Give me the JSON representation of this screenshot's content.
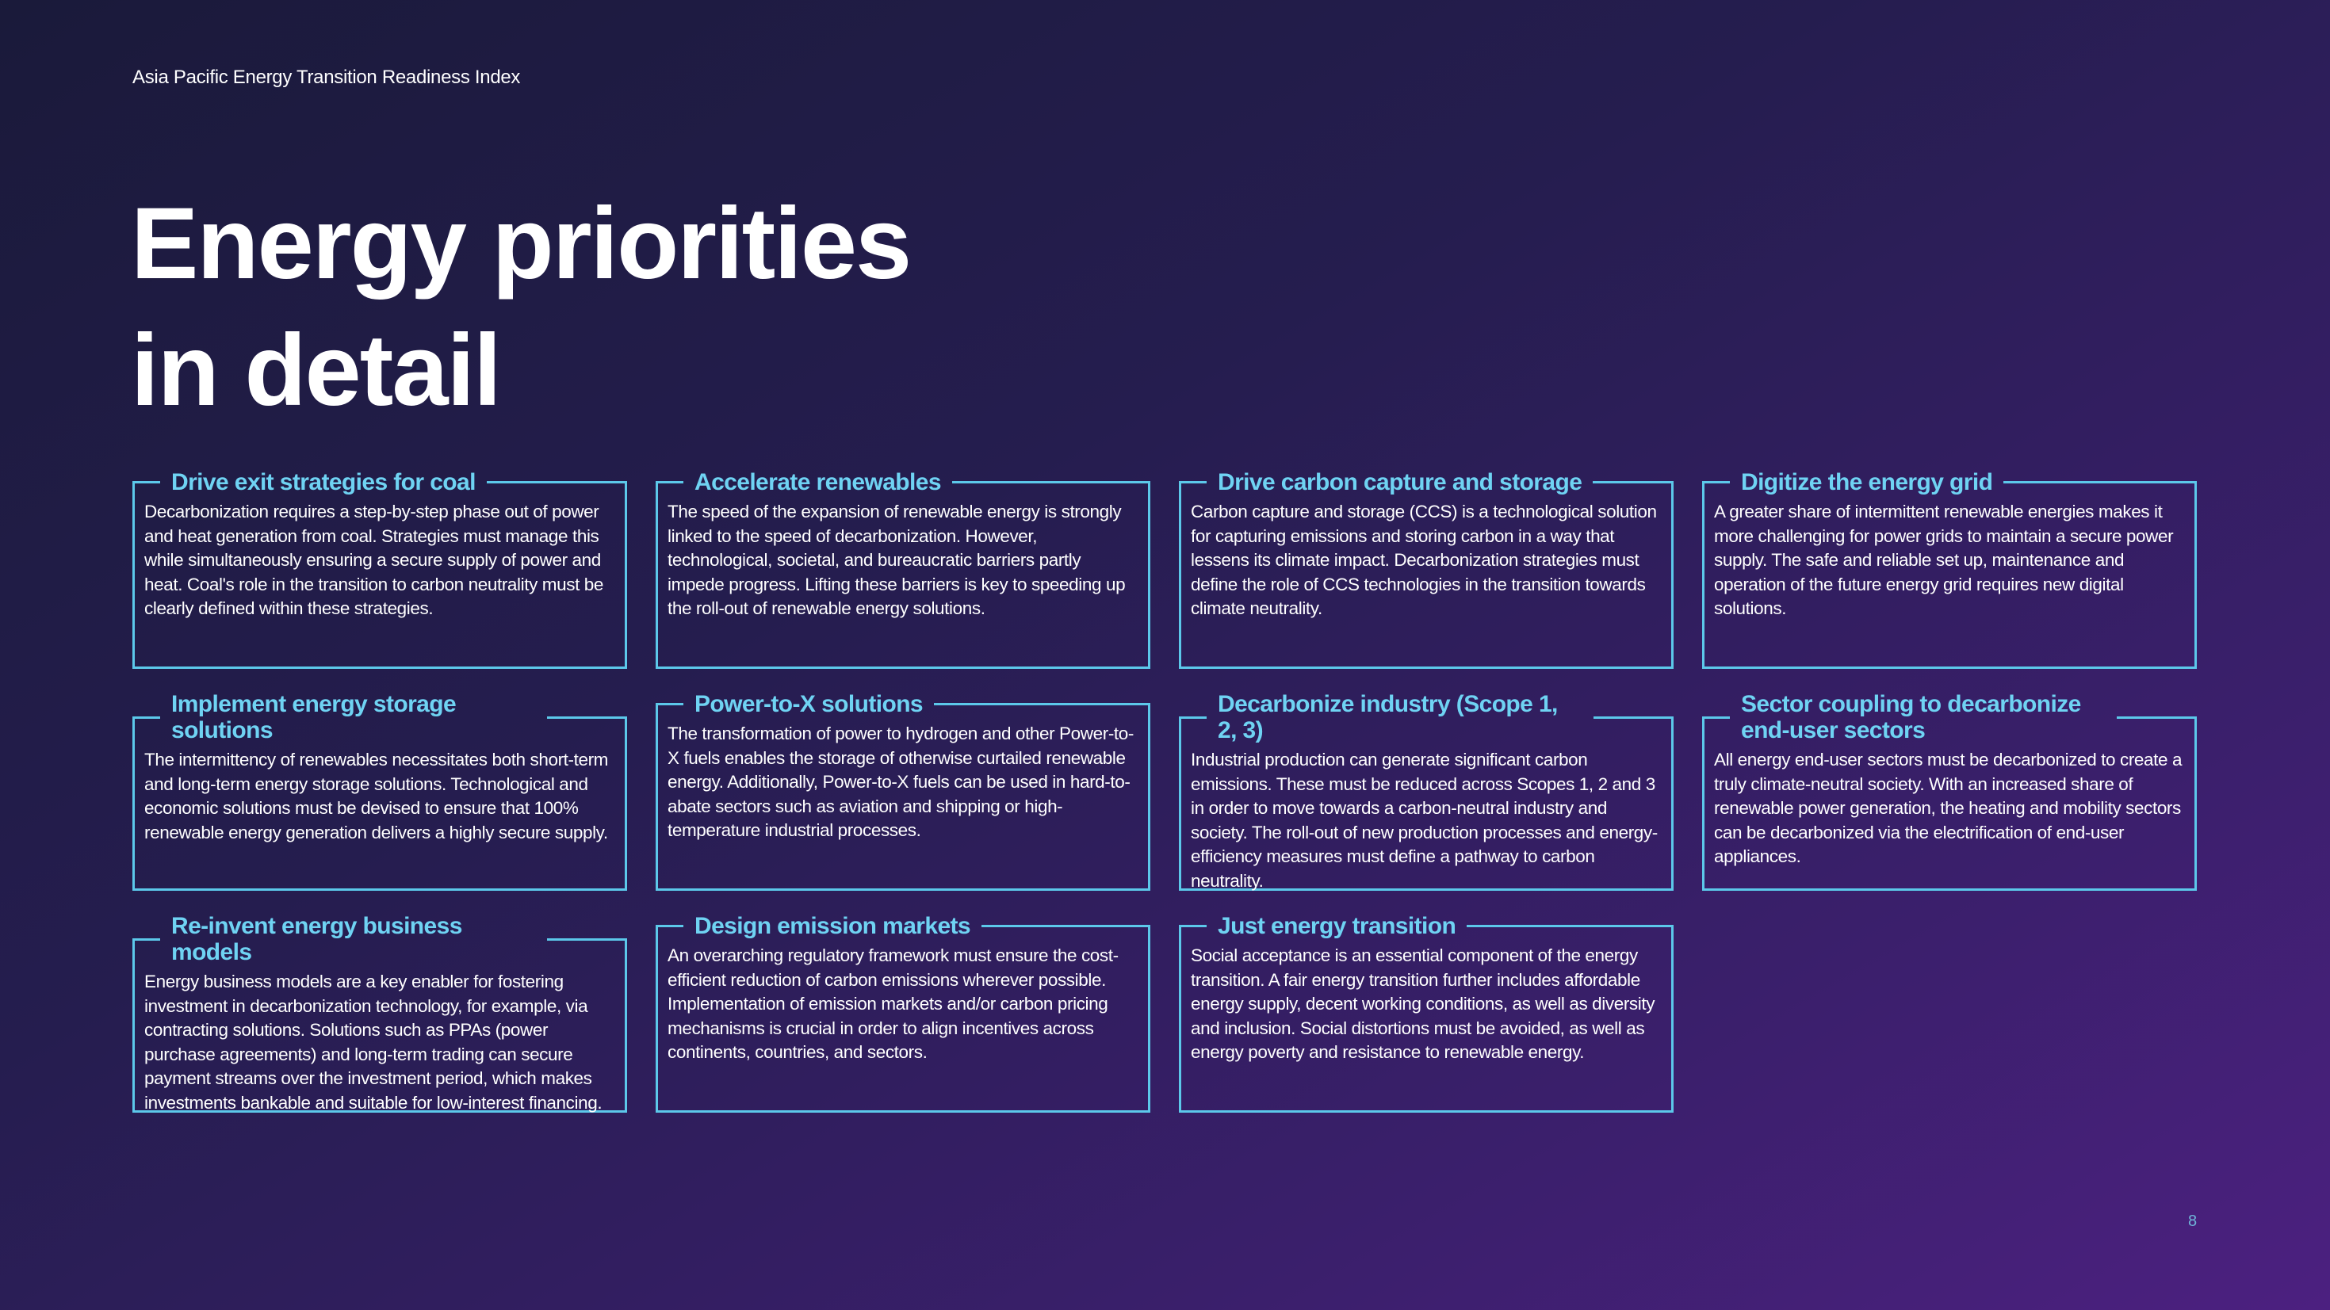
{
  "header": {
    "text": "Asia Pacific Energy Transition Readiness Index"
  },
  "title": {
    "line1": "Energy priorities",
    "line2": "in detail"
  },
  "colors": {
    "accent": "#6fd3f3",
    "border": "#5cc8ea",
    "bg_start": "#1a1a3a",
    "bg_end": "#4c2080"
  },
  "cards": [
    {
      "title": "Drive exit strategies for coal",
      "body": "Decarbonization requires a step-by-step phase out of power and heat generation from coal. Strategies must manage this while simultaneously ensuring a secure supply of power and heat. Coal's role in the transition to carbon neutrality must be clearly defined within these strategies."
    },
    {
      "title": "Accelerate renewables",
      "body": "The speed of the expansion of renewable energy is strongly linked to the speed of decarbonization. However, technological, societal, and bureaucratic barriers partly impede progress. Lifting these barriers is key to speeding up the roll-out of renewable energy solutions."
    },
    {
      "title": "Drive carbon capture and storage",
      "body": "Carbon capture and storage (CCS) is a technological solution for capturing emissions and storing carbon in a way that lessens its climate impact. Decarbonization strategies must define the role of CCS technologies in the transition towards climate neutrality."
    },
    {
      "title": "Digitize the energy grid",
      "body": "A greater share of intermittent renewable energies makes it more challenging for power grids to maintain a secure power supply. The safe and reliable set up, maintenance and operation of the future energy grid requires new digital solutions."
    },
    {
      "title": "Implement energy storage solutions",
      "body": "The intermittency of renewables necessitates both short-term and long-term energy storage solutions. Technological and economic solutions must be devised to ensure that 100% renewable energy generation delivers a highly secure supply."
    },
    {
      "title": "Power-to-X solutions",
      "body": "The transformation of power to hydrogen and other Power-to-X fuels enables the storage of otherwise curtailed renewable energy. Additionally, Power-to-X fuels can be used in hard-to-abate sectors such as aviation and shipping or high-temperature industrial processes."
    },
    {
      "title": "Decarbonize industry (Scope 1, 2, 3)",
      "body": "Industrial production can generate significant carbon emissions. These must be reduced across Scopes 1, 2 and 3 in order to move towards a carbon-neutral industry and society. The roll-out of new production processes and energy-efficiency measures must define a pathway to carbon neutrality."
    },
    {
      "title": "Sector coupling to decarbonize end-user sectors",
      "body": "All energy end-user sectors must be decarbonized to create a truly climate-neutral society. With an increased share of renewable power generation, the heating and mobility sectors can be decarbonized via the electrification of end-user appliances."
    },
    {
      "title": "Re-invent energy business models",
      "body": "Energy business models are a key enabler for fostering investment in decarbonization technology, for example, via contracting solutions. Solutions such as PPAs (power purchase agreements) and long-term trading can secure payment streams over the investment period, which makes investments bankable and suitable for low-interest financing."
    },
    {
      "title": "Design emission markets",
      "body": "An overarching regulatory framework must ensure the cost-efficient reduction of carbon emissions wherever possible. Implementation of emission markets and/or carbon pricing mechanisms is crucial in order to align incentives across continents, countries, and sectors."
    },
    {
      "title": "Just energy transition",
      "body": "Social acceptance is an essential component of the energy transition. A fair energy transition further includes affordable energy supply, decent working conditions, as well as diversity and inclusion. Social distortions must be avoided, as well as energy poverty and resistance to renewable energy."
    }
  ],
  "page_number": "8"
}
